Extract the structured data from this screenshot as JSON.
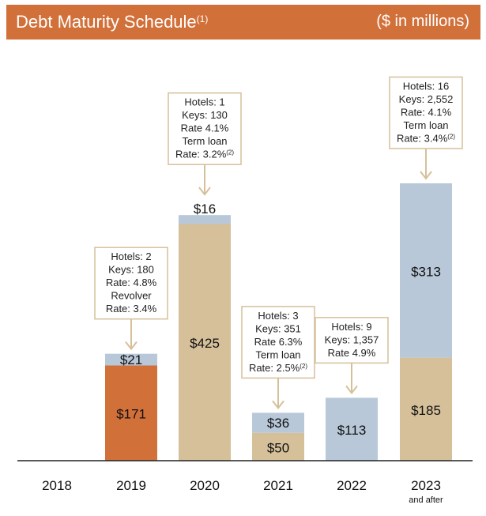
{
  "header": {
    "title": "Debt Maturity Schedule",
    "title_note": "(1)",
    "units": "($ in millions)"
  },
  "colors": {
    "header_bg": "#d2703a",
    "orange": "#d2703a",
    "tan": "#d6c09a",
    "blue": "#b8c8d8",
    "callout_border": "#d6c09a"
  },
  "chart_data": {
    "type": "bar",
    "stacked": true,
    "categories": [
      "2018",
      "2019",
      "2020",
      "2021",
      "2022",
      "2023"
    ],
    "category_sublabels": [
      "",
      "",
      "",
      "",
      "",
      "and after"
    ],
    "segments": [
      [],
      [
        {
          "value": 171,
          "label": "$171",
          "color": "orange"
        },
        {
          "value": 21,
          "label": "$21",
          "color": "blue"
        }
      ],
      [
        {
          "value": 425,
          "label": "$425",
          "color": "tan"
        },
        {
          "value": 16,
          "label": "$16",
          "color": "blue"
        }
      ],
      [
        {
          "value": 50,
          "label": "$50",
          "color": "tan"
        },
        {
          "value": 36,
          "label": "$36",
          "color": "blue"
        }
      ],
      [
        {
          "value": 113,
          "label": "$113",
          "color": "blue"
        }
      ],
      [
        {
          "value": 185,
          "label": "$185",
          "color": "tan"
        },
        {
          "value": 313,
          "label": "$313",
          "color": "blue"
        }
      ]
    ],
    "ylim": [
      0,
      498
    ],
    "grid": false,
    "annotations": [
      {
        "category": "2019",
        "lines": [
          "Hotels: 2",
          "Keys: 180",
          "Rate: 4.8%",
          "Revolver",
          "Rate: 3.4%"
        ]
      },
      {
        "category": "2020",
        "lines": [
          "Hotels: 1",
          "Keys: 130",
          "Rate 4.1%",
          "Term loan",
          "Rate: 3.2%(2)"
        ]
      },
      {
        "category": "2021",
        "lines": [
          "Hotels: 3",
          "Keys: 351",
          "Rate 6.3%",
          "Term loan",
          "Rate: 2.5%(2)"
        ]
      },
      {
        "category": "2022",
        "lines": [
          "Hotels: 9",
          "Keys: 1,357",
          "Rate 4.9%"
        ]
      },
      {
        "category": "2023",
        "lines": [
          "Hotels: 16",
          "Keys: 2,552",
          "Rate: 4.1%",
          "Term loan",
          "Rate: 3.4%(2)"
        ]
      }
    ]
  }
}
